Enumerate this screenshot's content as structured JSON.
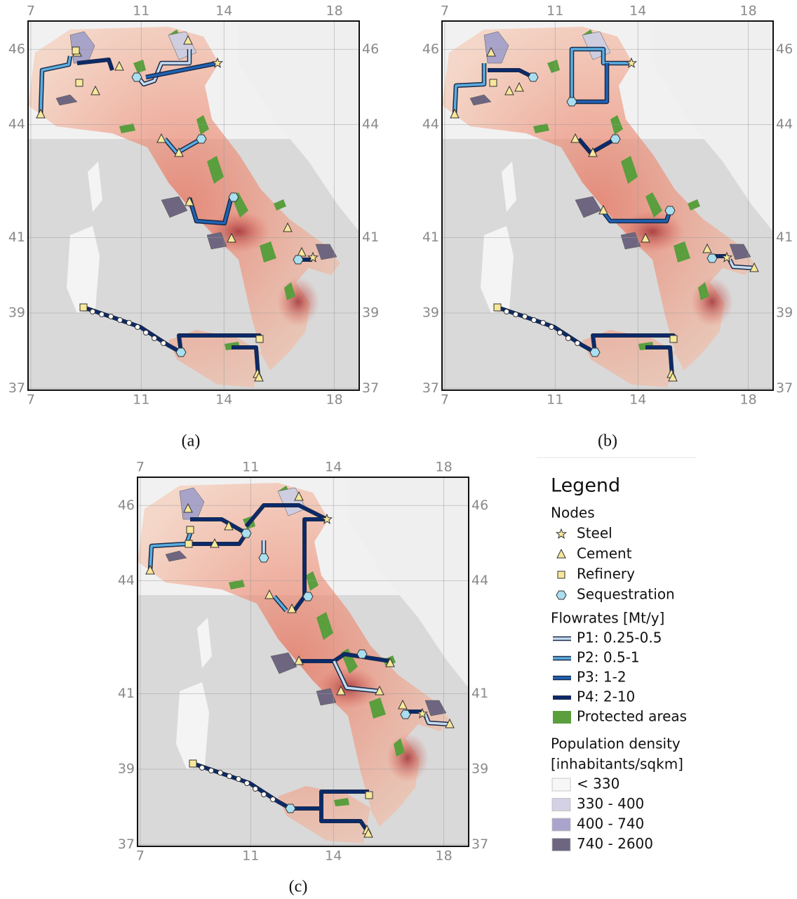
{
  "maps": {
    "lonlim": [
      6.9,
      18.9
    ],
    "latlim": [
      36.95,
      46.75
    ],
    "lonticks": [
      7,
      11,
      14,
      18
    ],
    "latticks": [
      37,
      39,
      41,
      44,
      46
    ],
    "panels": [
      {
        "caption": "(a)"
      },
      {
        "caption": "(b)"
      },
      {
        "caption": "(c)"
      }
    ]
  },
  "legend": {
    "title": "Legend",
    "nodes": {
      "heading": "Nodes",
      "items": [
        "Steel",
        "Cement",
        "Refinery",
        "Sequestration"
      ]
    },
    "flowrates": {
      "heading": "Flowrates [Mt/y]",
      "items": [
        "P1: 0.25-0.5",
        "P2: 0.5-1",
        "P3: 1-2",
        "P4: 2-10"
      ]
    },
    "protected": "Protected areas",
    "population": {
      "heading_lines": [
        "Population density",
        "[inhabitants/sqkm]"
      ],
      "items": [
        "< 330",
        "330 - 400",
        "400 - 740",
        "740 - 2600"
      ]
    }
  }
}
